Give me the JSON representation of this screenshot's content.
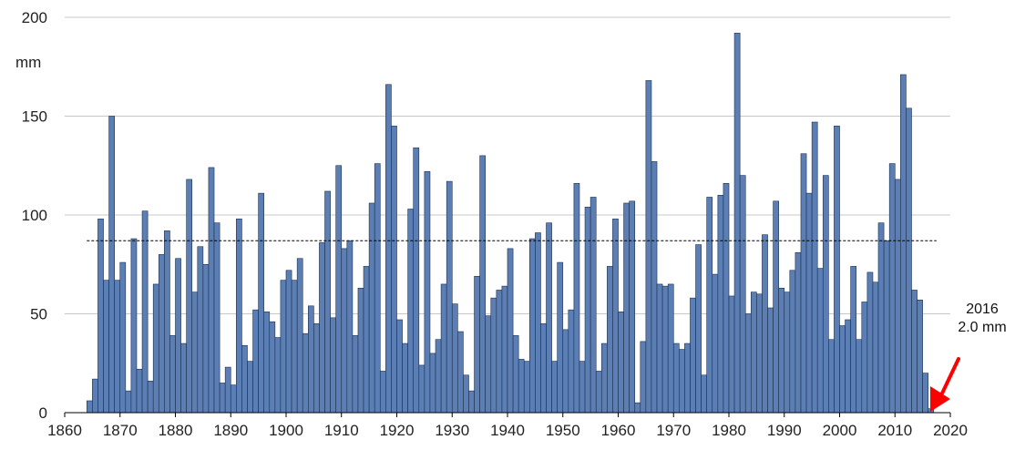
{
  "chart_data": {
    "type": "bar",
    "title": "",
    "xlabel": "",
    "ylabel": "mm",
    "xlim": [
      1860,
      2020
    ],
    "ylim": [
      0,
      200
    ],
    "x_ticks": [
      1860,
      1870,
      1880,
      1890,
      1900,
      1910,
      1920,
      1930,
      1940,
      1950,
      1960,
      1970,
      1980,
      1990,
      2000,
      2010,
      2020
    ],
    "y_ticks": [
      0,
      50,
      100,
      150,
      200
    ],
    "grid": "horizontal",
    "bar_color": "#5b7fb5",
    "mean_line": 87,
    "series": [
      {
        "start_year": 1864,
        "values": [
          6,
          17,
          98,
          67,
          150,
          67,
          76,
          11,
          88,
          22,
          102,
          16,
          65,
          80,
          92,
          39,
          78,
          35,
          118,
          61,
          84,
          75,
          124,
          96,
          15,
          23,
          14,
          98,
          34,
          26,
          52,
          111,
          51,
          46,
          38,
          67,
          72,
          67,
          78,
          40,
          54,
          45,
          86,
          112,
          48,
          125,
          83,
          87,
          39,
          63,
          74,
          106,
          126,
          21,
          166,
          145,
          47,
          35,
          103,
          134,
          24,
          122,
          30,
          37,
          65,
          117,
          55,
          41,
          19,
          11,
          69,
          130,
          49,
          58,
          62,
          64,
          83,
          39,
          27,
          26,
          88,
          91,
          45,
          96,
          26,
          76,
          42,
          52,
          116,
          26,
          104,
          109,
          21,
          35,
          74,
          98,
          51,
          106,
          107,
          5,
          36,
          168,
          127,
          65,
          64,
          65,
          35,
          32,
          35,
          58,
          85,
          19,
          109,
          70,
          110,
          116,
          59,
          192,
          120,
          50,
          61,
          60,
          90,
          53,
          107,
          63,
          61,
          72,
          81,
          131,
          111,
          147,
          73,
          120,
          37,
          145,
          44,
          47,
          74,
          37,
          56,
          71,
          66,
          96,
          87,
          126,
          118,
          171,
          154,
          62,
          57,
          20,
          2
        ]
      }
    ],
    "annotation": {
      "year_label": "2016",
      "value_label": "2.0 mm",
      "arrow_color": "#ff0000"
    }
  }
}
